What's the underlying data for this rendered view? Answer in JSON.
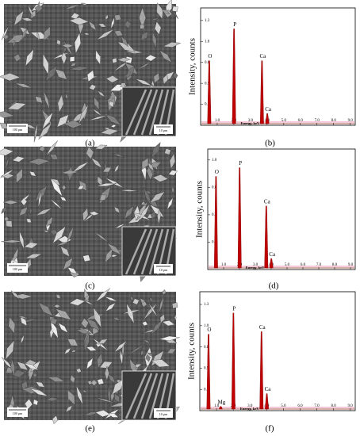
{
  "chart_data": [
    {
      "type": "peaks",
      "panel_label": "(b)",
      "ylabel": "Intensity, counts",
      "xlabel": "Energy, keV",
      "color": "#c00000",
      "x": [
        0.52,
        2.01,
        3.69,
        4.01
      ],
      "values": [
        0.77,
        1.15,
        0.77,
        0.14
      ],
      "peak_labels": [
        "O",
        "P",
        "Ca",
        "Ca"
      ],
      "xlim": [
        0,
        9.3
      ],
      "ylim": [
        0,
        1.4
      ],
      "xticks": [
        {
          "value": 1,
          "label": "1.0"
        },
        {
          "value": 2,
          "label": "2.0"
        },
        {
          "value": 3,
          "label": "3.0"
        },
        {
          "value": 4,
          "label": "4.0"
        },
        {
          "value": 5,
          "label": "5.0"
        },
        {
          "value": 6,
          "label": "6.0"
        },
        {
          "value": 7,
          "label": "7.0"
        },
        {
          "value": 8,
          "label": "8.0"
        },
        {
          "value": 9,
          "label": "9.0"
        }
      ],
      "yticks": [
        {
          "value": 0.25,
          "label": "0.3"
        },
        {
          "value": 0.5,
          "label": "0.5"
        },
        {
          "value": 0.75,
          "label": "0.8"
        },
        {
          "value": 1,
          "label": "1.0"
        },
        {
          "value": 1.25,
          "label": "1.3"
        }
      ]
    },
    {
      "type": "peaks",
      "panel_label": "(d)",
      "ylabel": "Intensity, counts",
      "xlabel": "Energy, keV",
      "color": "#c00000",
      "x": [
        0.52,
        2.01,
        3.69,
        4.01
      ],
      "values": [
        0.85,
        0.93,
        0.58,
        0.1
      ],
      "peak_labels": [
        "O",
        "P",
        "Ca",
        "Ca"
      ],
      "xlim": [
        0,
        9.3
      ],
      "ylim": [
        0,
        1.1
      ],
      "xticks": [
        {
          "value": 1,
          "label": "1.0"
        },
        {
          "value": 2,
          "label": "2.0"
        },
        {
          "value": 3,
          "label": "3.0"
        },
        {
          "value": 4,
          "label": "4.0"
        },
        {
          "value": 5,
          "label": "5.0"
        },
        {
          "value": 6,
          "label": "6.0"
        },
        {
          "value": 7,
          "label": "7.0"
        },
        {
          "value": 8,
          "label": "8.0"
        },
        {
          "value": 9,
          "label": "9.0"
        }
      ],
      "yticks": [
        {
          "value": 0.25,
          "label": "0.3"
        },
        {
          "value": 0.5,
          "label": "0.5"
        },
        {
          "value": 0.75,
          "label": "0.8"
        },
        {
          "value": 1,
          "label": "1.0"
        }
      ]
    },
    {
      "type": "peaks",
      "panel_label": "(f)",
      "ylabel": "Intensity, counts",
      "xlabel": "Energy, keV",
      "color": "#c00000",
      "x": [
        0.52,
        1.25,
        2.01,
        3.69,
        4.01
      ],
      "values": [
        0.9,
        0.05,
        1.15,
        0.93,
        0.2
      ],
      "peak_labels": [
        "O",
        "Mg",
        "P",
        "Ca",
        "Ca"
      ],
      "xlim": [
        0,
        9.3
      ],
      "ylim": [
        0,
        1.4
      ],
      "xticks": [
        {
          "value": 1,
          "label": "1.0"
        },
        {
          "value": 2,
          "label": "2.0"
        },
        {
          "value": 3,
          "label": "3.0"
        },
        {
          "value": 4,
          "label": "4.0"
        },
        {
          "value": 5,
          "label": "5.0"
        },
        {
          "value": 6,
          "label": "6.0"
        },
        {
          "value": 7,
          "label": "7.0"
        },
        {
          "value": 8,
          "label": "8.0"
        },
        {
          "value": 9,
          "label": "9.0"
        }
      ],
      "yticks": [
        {
          "value": 0.25,
          "label": "0.3"
        },
        {
          "value": 0.5,
          "label": "0.5"
        },
        {
          "value": 0.75,
          "label": "0.8"
        },
        {
          "value": 1,
          "label": "1.0"
        },
        {
          "value": 1.25,
          "label": "1.3"
        }
      ]
    }
  ],
  "images": [
    {
      "panel_label": "(a)",
      "scale_bar": "100 µm",
      "inset_scale_bar": "10 µm"
    },
    {
      "panel_label": "(c)",
      "scale_bar": "100 µm",
      "inset_scale_bar": "10 µm"
    },
    {
      "panel_label": "(e)",
      "scale_bar": "100 µm",
      "inset_scale_bar": "10 µm"
    }
  ]
}
